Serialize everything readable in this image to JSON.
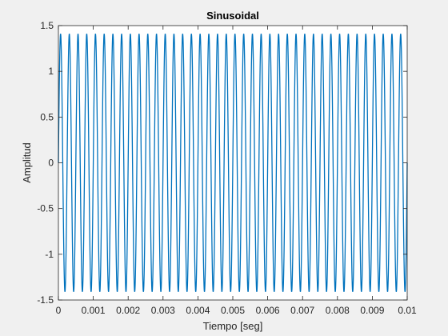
{
  "chart_data": {
    "type": "line",
    "title": "Sinusoidal",
    "xlabel": "Tiempo [seg]",
    "ylabel": "Amplitud",
    "xlim": [
      0,
      0.01
    ],
    "ylim": [
      -1.5,
      1.5
    ],
    "xticks": [
      "0",
      "0.001",
      "0.002",
      "0.003",
      "0.004",
      "0.005",
      "0.006",
      "0.007",
      "0.008",
      "0.009",
      "0.01"
    ],
    "xtick_values": [
      0,
      0.001,
      0.002,
      0.003,
      0.004,
      0.005,
      0.006,
      0.007,
      0.008,
      0.009,
      0.01
    ],
    "yticks": [
      "-1.5",
      "-1",
      "-0.5",
      "0",
      "0.5",
      "1",
      "1.5"
    ],
    "ytick_values": [
      -1.5,
      -1,
      -0.5,
      0,
      0.5,
      1,
      1.5
    ],
    "grid": false,
    "series": [
      {
        "color": "#0072BD",
        "function": "sine",
        "amplitude": 1.41,
        "frequency_hz": 4000,
        "phase_rad": 0,
        "x_start": 0,
        "x_end": 0.01
      }
    ]
  }
}
